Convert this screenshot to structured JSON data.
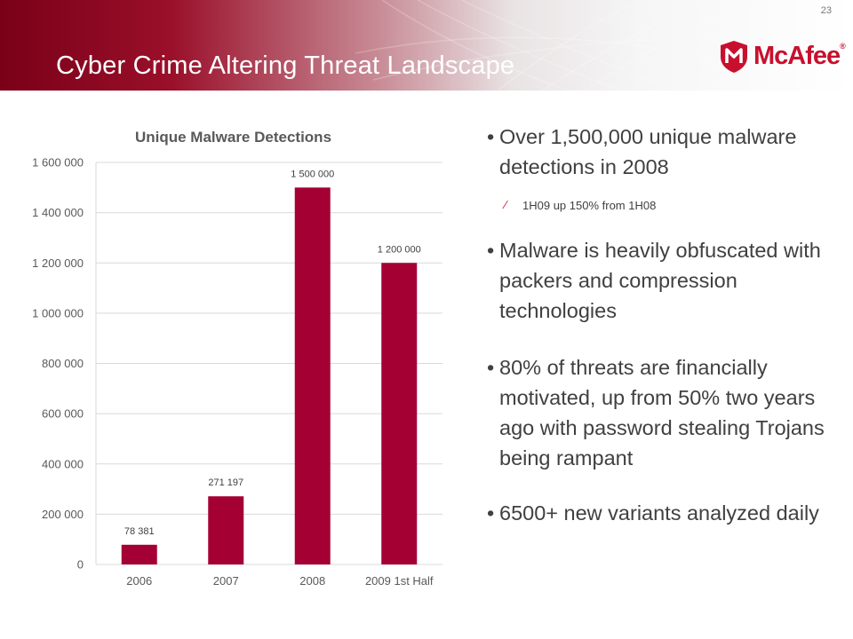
{
  "slide": {
    "title": "Cyber Crime Altering Threat Landscape",
    "number": "23",
    "brand": "McAfee",
    "brand_color": "#c8102e"
  },
  "chart_data": {
    "type": "bar",
    "title": "Unique Malware Detections",
    "categories": [
      "2006",
      "2007",
      "2008",
      "2009 1st Half"
    ],
    "values": [
      78381,
      271197,
      1500000,
      1200000
    ],
    "data_labels": [
      "78 381",
      "271 197",
      "1 500 000",
      "1 200 000"
    ],
    "y_ticks": [
      0,
      200000,
      400000,
      600000,
      800000,
      1000000,
      1200000,
      1400000,
      1600000
    ],
    "y_tick_labels": [
      "0",
      "200 000",
      "400 000",
      "600 000",
      "800 000",
      "1 000 000",
      "1 200 000",
      "1 400 000",
      "1 600 000"
    ],
    "ylim": [
      0,
      1600000
    ],
    "grid": true,
    "bar_color": "#a50034"
  },
  "bullets": [
    {
      "text": "Over 1,500,000 unique malware detections in 2008",
      "sub": [
        "1H09 up 150% from 1H08"
      ]
    },
    {
      "text": "Malware is heavily obfuscated with packers and compression technologies",
      "sub": []
    },
    {
      "text": "80% of threats are financially motivated, up from 50% two years ago with password stealing Trojans being rampant",
      "sub": []
    },
    {
      "text": "6500+ new variants analyzed daily",
      "sub": []
    }
  ]
}
